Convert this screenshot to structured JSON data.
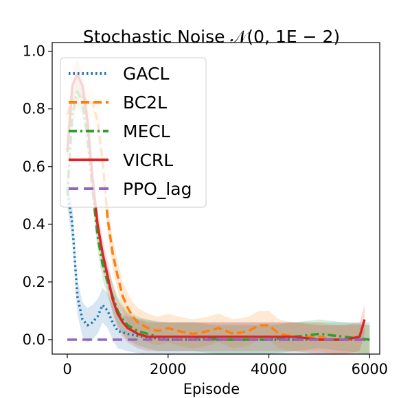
{
  "chart_data": {
    "type": "line",
    "title": "Stochastic Noise 𝒩(0, 1E − 2)",
    "xlabel": "Episode",
    "ylabel": "",
    "xlim": [
      -300,
      6200
    ],
    "ylim": [
      -0.05,
      1.03
    ],
    "xticks": [
      0,
      2000,
      4000,
      6000
    ],
    "xtick_labels": [
      "0",
      "2000",
      "4000",
      "6000"
    ],
    "yticks": [
      0.0,
      0.2,
      0.4,
      0.6,
      0.8,
      1.0
    ],
    "ytick_labels": [
      "0.0",
      "0.2",
      "0.4",
      "0.6",
      "0.8",
      "1.0"
    ],
    "grid": false,
    "legend_position": "top-left",
    "series": [
      {
        "name": "GACL",
        "color": "#1f77b4",
        "dash": "dotted",
        "x": [
          0,
          100,
          200,
          300,
          400,
          500,
          600,
          700,
          800,
          900,
          1000,
          1200,
          1500,
          2000,
          2500,
          3000,
          3500,
          4000,
          4500,
          5000,
          5500,
          6000
        ],
        "values": [
          0.52,
          0.4,
          0.15,
          0.07,
          0.05,
          0.06,
          0.08,
          0.12,
          0.1,
          0.06,
          0.03,
          0.02,
          0.01,
          0.0,
          0.0,
          0.0,
          0.0,
          0.0,
          0.0,
          0.0,
          0.0,
          0.0
        ],
        "band": 0.06
      },
      {
        "name": "BC2L",
        "color": "#ff7f0e",
        "dash": "dashed",
        "x": [
          0,
          100,
          200,
          300,
          400,
          500,
          600,
          700,
          800,
          900,
          1000,
          1100,
          1200,
          1300,
          1400,
          1600,
          1800,
          2000,
          2200,
          2500,
          2800,
          3000,
          3300,
          3600,
          3800,
          4000,
          4200,
          4500,
          4800,
          5000,
          5300,
          5600,
          6000
        ],
        "values": [
          0.78,
          0.83,
          0.85,
          0.84,
          0.83,
          0.82,
          0.76,
          0.62,
          0.42,
          0.3,
          0.22,
          0.15,
          0.11,
          0.08,
          0.06,
          0.04,
          0.03,
          0.04,
          0.03,
          0.02,
          0.03,
          0.04,
          0.02,
          0.03,
          0.05,
          0.05,
          0.02,
          0.01,
          0.01,
          0.01,
          0.0,
          0.0,
          0.0
        ],
        "band": 0.05
      },
      {
        "name": "MECL",
        "color": "#2ca02c",
        "dash": "dashdot",
        "x": [
          0,
          100,
          200,
          300,
          400,
          500,
          600,
          700,
          800,
          900,
          1000,
          1100,
          1200,
          1400,
          1600,
          1800,
          2000,
          2500,
          3000,
          3500,
          4000,
          4500,
          5000,
          5500,
          6000
        ],
        "values": [
          0.5,
          0.78,
          0.86,
          0.82,
          0.7,
          0.52,
          0.36,
          0.26,
          0.2,
          0.15,
          0.1,
          0.07,
          0.05,
          0.03,
          0.02,
          0.01,
          0.01,
          0.01,
          0.0,
          0.0,
          0.0,
          0.01,
          0.02,
          0.01,
          0.0
        ],
        "band": 0.05
      },
      {
        "name": "VICRL",
        "color": "#d62728",
        "dash": "solid",
        "x": [
          0,
          100,
          200,
          300,
          400,
          500,
          600,
          700,
          800,
          900,
          1000,
          1100,
          1200,
          1400,
          1600,
          1800,
          2000,
          2500,
          3000,
          3500,
          4000,
          4500,
          5000,
          5500,
          5800,
          5900
        ],
        "values": [
          0.65,
          0.88,
          0.92,
          0.88,
          0.76,
          0.56,
          0.4,
          0.3,
          0.22,
          0.14,
          0.09,
          0.06,
          0.04,
          0.02,
          0.01,
          0.01,
          0.01,
          0.01,
          0.01,
          0.01,
          0.01,
          0.01,
          0.0,
          0.0,
          0.01,
          0.07
        ],
        "band": 0.05
      },
      {
        "name": "PPO_lag",
        "color": "#9467bd",
        "dash": "longdash",
        "x": [
          0,
          6000
        ],
        "values": [
          0.0,
          0.0
        ],
        "band": 0
      }
    ]
  }
}
